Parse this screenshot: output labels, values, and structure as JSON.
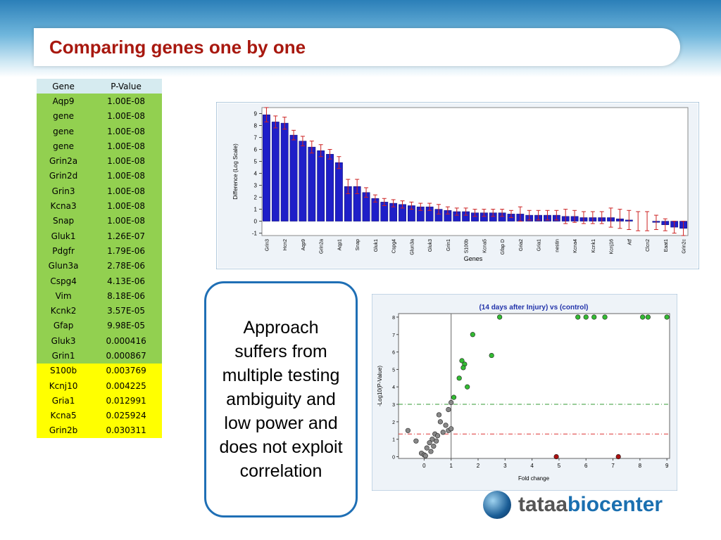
{
  "title": "Comparing genes one by one",
  "table": {
    "header": [
      "Gene",
      "P-Value"
    ],
    "rows": [
      [
        "Aqp9",
        "1.00E-08"
      ],
      [
        "gene",
        "1.00E-08"
      ],
      [
        "gene",
        "1.00E-08"
      ],
      [
        "gene",
        "1.00E-08"
      ],
      [
        "Grin2a",
        "1.00E-08"
      ],
      [
        "Grin2d",
        "1.00E-08"
      ],
      [
        "Grin3",
        "1.00E-08"
      ],
      [
        "Kcna3",
        "1.00E-08"
      ],
      [
        "Snap",
        "1.00E-08"
      ],
      [
        "Gluk1",
        "1.26E-07"
      ],
      [
        "Pdgfr",
        "1.79E-06"
      ],
      [
        "Glun3a",
        "2.78E-06"
      ],
      [
        "Cspg4",
        "4.13E-06"
      ],
      [
        "Vim",
        "8.18E-06"
      ],
      [
        "Kcnk2",
        "3.57E-05"
      ],
      [
        "Gfap",
        "9.98E-05"
      ],
      [
        "Gluk3",
        "0.000416"
      ],
      [
        "Grin1",
        "0.000867"
      ],
      [
        "S100b",
        "0.003769"
      ],
      [
        "Kcnj10",
        "0.004225"
      ],
      [
        "Gria1",
        "0.012991"
      ],
      [
        "Kcna5",
        "0.025924"
      ],
      [
        "Grin2b",
        "0.030311"
      ]
    ]
  },
  "callout": "Approach suffers from multiple testing ambiguity and low power and does not exploit correlation",
  "logo": {
    "part1": "tataa",
    "part2": "biocenter"
  },
  "chart_data": [
    {
      "type": "bar",
      "ylabel": "Difference (Log Scale)",
      "xlabel": "Genes",
      "categories": [
        "Grin3",
        null,
        "Hcn2",
        null,
        "Aqp9",
        null,
        "Grin2a",
        null,
        "Aqp1",
        null,
        "Snap",
        null,
        "Gluk1",
        null,
        "Cspg4",
        null,
        "Glun3a",
        null,
        "Gluk3",
        null,
        "Grin1",
        null,
        "S100b",
        null,
        "Kcna5",
        null,
        "Gfap D",
        null,
        "Gria2",
        null,
        "Gria1",
        null,
        "nestin",
        null,
        "Kcna4",
        null,
        "Kcnk1",
        null,
        "Kcnj16",
        null,
        "Atf",
        null,
        "Clcn2",
        null,
        "Eaat1",
        null,
        "Grin2c"
      ],
      "values": [
        8.9,
        8.3,
        8.2,
        7.2,
        6.7,
        6.2,
        5.9,
        5.6,
        4.9,
        2.9,
        2.9,
        2.4,
        1.9,
        1.6,
        1.5,
        1.4,
        1.3,
        1.2,
        1.2,
        1.0,
        0.9,
        0.8,
        0.8,
        0.7,
        0.7,
        0.7,
        0.7,
        0.6,
        0.6,
        0.5,
        0.5,
        0.5,
        0.5,
        0.4,
        0.4,
        0.3,
        0.3,
        0.3,
        0.3,
        0.2,
        0.1,
        0.0,
        0.0,
        -0.1,
        -0.3,
        -0.5,
        -0.6
      ],
      "errors": [
        0.6,
        0.5,
        0.5,
        0.4,
        0.4,
        0.5,
        0.5,
        0.4,
        0.5,
        0.6,
        0.6,
        0.4,
        0.3,
        0.3,
        0.3,
        0.3,
        0.3,
        0.3,
        0.3,
        0.4,
        0.3,
        0.3,
        0.3,
        0.3,
        0.3,
        0.3,
        0.3,
        0.3,
        0.6,
        0.4,
        0.4,
        0.4,
        0.4,
        0.6,
        0.5,
        0.5,
        0.5,
        0.5,
        0.8,
        0.8,
        0.8,
        0.8,
        0.8,
        0.6,
        0.5,
        0.5,
        0.6
      ],
      "color": "#1f1fc8",
      "error_color": "#cc2222",
      "ylim": [
        -1.2,
        9.5
      ],
      "yticks": [
        -1,
        0,
        1,
        2,
        3,
        4,
        5,
        6,
        7,
        8,
        9
      ]
    },
    {
      "type": "scatter",
      "title": "(14 days after Injury) vs (control)",
      "xlabel": "Fold change",
      "ylabel": "-Log10(P-Value)",
      "xlim": [
        -0.95,
        9.1
      ],
      "ylim": [
        -0.1,
        8.2
      ],
      "xticks": [
        0,
        1,
        2,
        3,
        4,
        5,
        6,
        7,
        8,
        9
      ],
      "yticks": [
        0,
        1,
        2,
        3,
        4,
        5,
        6,
        7,
        8
      ],
      "series": [
        {
          "color": "#33bb33",
          "x": [
            2.8,
            5.7,
            6,
            6.3,
            6.7,
            8.1,
            8.3,
            9,
            1.8,
            2.5,
            1.4,
            1.5,
            1.45,
            1.3,
            1.6,
            1.1
          ],
          "values": [
            8,
            8,
            8,
            8,
            8,
            8,
            8,
            8,
            7,
            5.8,
            5.5,
            5.3,
            5.1,
            4.5,
            4.0,
            3.4
          ]
        },
        {
          "color": "#888888",
          "x": [
            1.0,
            0.9,
            0.55,
            0.6,
            0.8,
            -0.6,
            0.9,
            1.0,
            0.7,
            0.4,
            0.5,
            0.3,
            0.45,
            0.2,
            0.35,
            0.1,
            0.25,
            -0.1,
            0.0,
            0.05,
            -0.3
          ],
          "values": [
            3.1,
            2.7,
            2.4,
            2.0,
            1.8,
            1.5,
            1.5,
            1.6,
            1.4,
            1.3,
            1.2,
            1.0,
            0.9,
            0.8,
            0.6,
            0.5,
            0.3,
            0.2,
            0.1,
            0.05,
            0.9
          ]
        },
        {
          "color": "#aa1111",
          "x": [
            4.9,
            7.2
          ],
          "values": [
            0,
            0
          ]
        }
      ],
      "threshold_lines": [
        {
          "axis": "y",
          "value": 3,
          "color": "#339933"
        },
        {
          "axis": "y",
          "value": 1.3,
          "color": "#dd3333"
        },
        {
          "axis": "x",
          "value": 1,
          "color": "#666666"
        }
      ]
    }
  ]
}
